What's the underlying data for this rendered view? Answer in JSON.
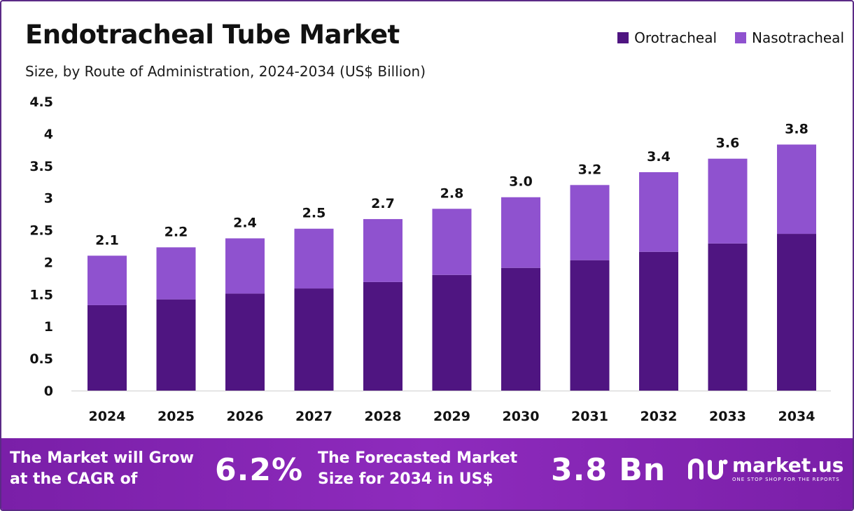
{
  "header": {
    "title": "Endotracheal Tube Market",
    "subtitle": "Size, by Route of Administration, 2024-2034 (US$ Billion)"
  },
  "chart_data": {
    "type": "bar",
    "stacked": true,
    "categories": [
      "2024",
      "2025",
      "2026",
      "2027",
      "2028",
      "2029",
      "2030",
      "2031",
      "2032",
      "2033",
      "2034"
    ],
    "series": [
      {
        "name": "Orotracheal",
        "color": "#4f1581",
        "values": [
          1.33,
          1.42,
          1.51,
          1.59,
          1.69,
          1.8,
          1.91,
          2.03,
          2.16,
          2.29,
          2.44
        ]
      },
      {
        "name": "Nasotracheal",
        "color": "#8f52cf",
        "values": [
          0.77,
          0.81,
          0.86,
          0.93,
          0.98,
          1.03,
          1.1,
          1.17,
          1.24,
          1.32,
          1.39
        ]
      }
    ],
    "totals_labels": [
      "2.1",
      "2.2",
      "2.4",
      "2.5",
      "2.7",
      "2.8",
      "3.0",
      "3.2",
      "3.4",
      "3.6",
      "3.8"
    ],
    "ylim": [
      0,
      4.5
    ],
    "yticks": [
      0,
      0.5,
      1,
      1.5,
      2,
      2.5,
      3,
      3.5,
      4,
      4.5
    ],
    "ytick_labels": [
      "0",
      "0.5",
      "1",
      "1.5",
      "2",
      "2.5",
      "3",
      "3.5",
      "4",
      "4.5"
    ],
    "grid": false,
    "legend_position": "top-right",
    "xlabel": "",
    "ylabel": ""
  },
  "banner": {
    "cagr_text": "The Market will Grow\nat the CAGR of",
    "cagr_value": "6.2%",
    "forecast_text": "The Forecasted Market\nSize for 2034 in US$",
    "forecast_value": "3.8 Bn",
    "brand_name": "market.us",
    "brand_tagline": "ONE STOP SHOP FOR THE REPORTS",
    "brand_icon": "market-us-logo-icon"
  },
  "colors": {
    "border": "#5b2a86",
    "banner": "#8e2bbd"
  }
}
